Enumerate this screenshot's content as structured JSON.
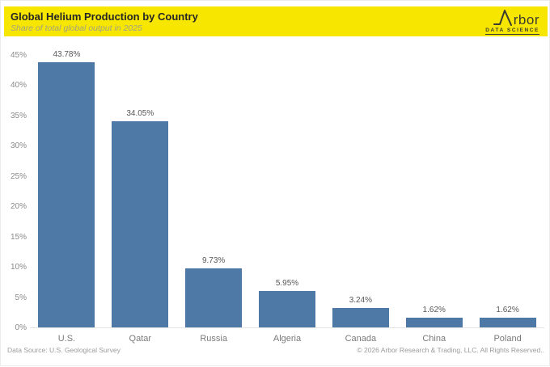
{
  "header": {
    "title": "Global Helium Production by Country",
    "subtitle": "Share of total global output in 2025",
    "background_color": "#F7E600",
    "logo": {
      "brand": "Arbor",
      "brand_rest": "rbor",
      "tagline": "DATA SCIENCE"
    }
  },
  "chart_data": {
    "type": "bar",
    "title": "Global Helium Production by Country",
    "subtitle": "Share of total global output in 2025",
    "categories": [
      "U.S.",
      "Qatar",
      "Russia",
      "Algeria",
      "Canada",
      "China",
      "Poland"
    ],
    "values": [
      43.78,
      34.05,
      9.73,
      5.95,
      3.24,
      1.62,
      1.62
    ],
    "value_labels": [
      "43.78%",
      "34.05%",
      "9.73%",
      "5.95%",
      "3.24%",
      "1.62%",
      "1.62%"
    ],
    "xlabel": "",
    "ylabel": "",
    "ylim": [
      0,
      45
    ],
    "ytick_step": 5,
    "ytick_labels": [
      "0%",
      "5%",
      "10%",
      "15%",
      "20%",
      "25%",
      "30%",
      "35%",
      "40%",
      "45%"
    ],
    "bar_color": "#4e79a7",
    "grid": false,
    "legend": false
  },
  "footer": {
    "source": "Data Source: U.S. Geological Survey",
    "copyright": "© 2026 Arbor Research & Trading, LLC. All Rights Reserved.."
  }
}
